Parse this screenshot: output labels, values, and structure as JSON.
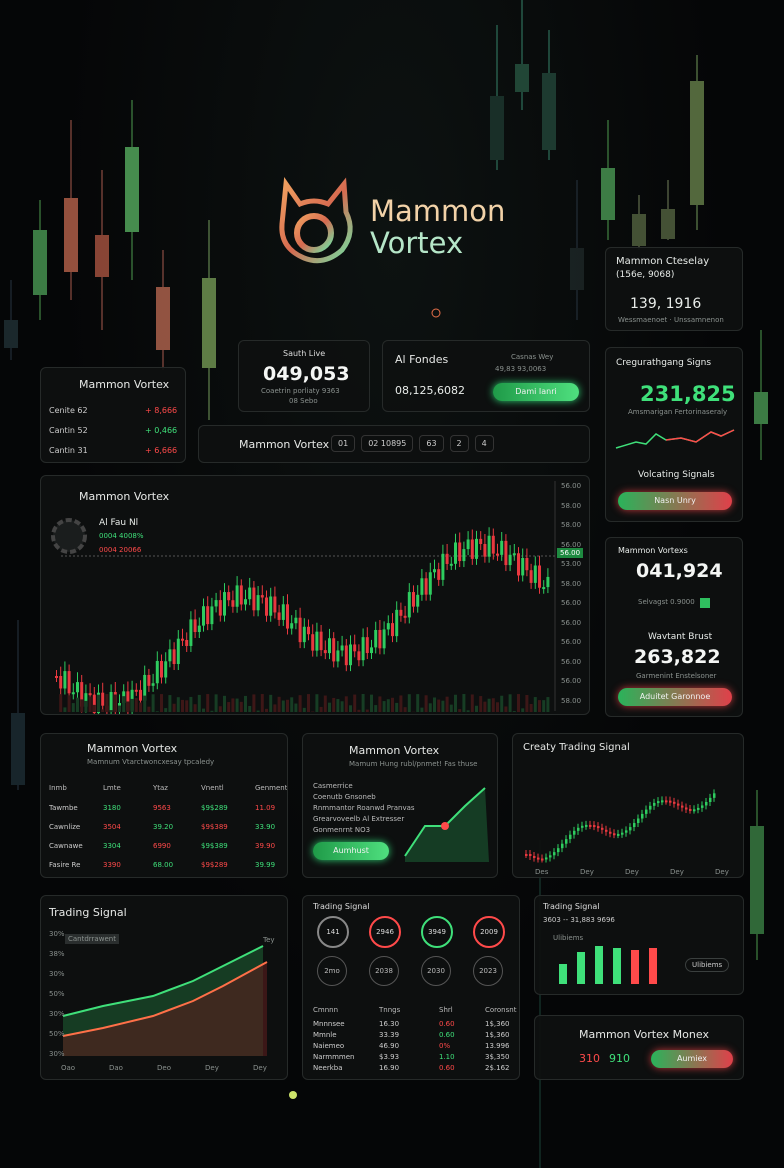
{
  "header": {
    "brand_line1": "Mammon",
    "brand_line2": "Vortex"
  },
  "live_panel": {
    "title": "Sauth Live",
    "value": "049,053",
    "sub1": "Coaetrin porliaty 9363",
    "sub2": "08 Sebo"
  },
  "fonds_panel": {
    "title": "Al Fondes",
    "side_title": "Casnas Wey",
    "side_sub": "49,83 93,0063",
    "value": "08,125,6082",
    "button": "Dami Ianri"
  },
  "vortex_small": {
    "title": "Mammon Vortex",
    "rows": [
      [
        "Cenite 62",
        "+ 8,666"
      ],
      [
        "Cantin 52",
        "+ 0,466"
      ],
      [
        "Cantin 31",
        "+ 6,666"
      ]
    ]
  },
  "toolbar": {
    "title": "Mammon Vortex",
    "tabs": [
      "01",
      "02 10895",
      "63",
      "2",
      "4"
    ]
  },
  "main_chart": {
    "title": "Mammon Vortex",
    "sub_title": "Al Fau Nl",
    "legend": [
      "0004 4008%",
      "0004 20066"
    ],
    "price_tag": "56.00",
    "axis_labels": [
      "56.00",
      "58.00",
      "58.00",
      "56.00",
      "53.00",
      "58.00",
      "56.00",
      "56.00",
      "56.00",
      "56.00",
      "56.00",
      "58.00"
    ]
  },
  "crossday": {
    "title": "Mammon Cteselay",
    "sub": "(156e, 9068)",
    "value": "139, 1916",
    "foot": "Wessmaenoet · Unssamnenon"
  },
  "signals": {
    "title": "Cregurathgang Signs",
    "value": "231,825",
    "sub": "Amsmarigan Fertorinaseraly",
    "label": "Volcating Signals",
    "button": "Nasn Unry"
  },
  "vortex_values": {
    "title": "Mammon Vortexs",
    "value1": "041,924",
    "sub1": "Selvagst 0.9000",
    "label2": "Wavtant Brust",
    "value2": "263,822",
    "sub2": "Garmenint Enstelsoner",
    "button": "Aduitet Garonnoe"
  },
  "table_panel": {
    "title": "Mammon Vortex",
    "subtitle": "Mamnum Vtarctwoncxesay tpcaledy",
    "headers": [
      "Inmb",
      "Lmte",
      "Ytaz",
      "Vnentl",
      "Genment"
    ],
    "rows": [
      [
        "Tawmbe",
        "3180",
        "9563",
        "$9$289",
        "11.09"
      ],
      [
        "Cawnlize",
        "3504",
        "39.20",
        "$9$389",
        "33.90"
      ],
      [
        "Cawnawe",
        "3304",
        "6990",
        "$9$389",
        "39.90"
      ],
      [
        "Fasire Re",
        "3390",
        "68.00",
        "$9$289",
        "39.99"
      ]
    ]
  },
  "mid_panel": {
    "title": "Mammon Vortex",
    "subtitle": "Mamum Hung rubl/pnmet! Fas thuse",
    "lines": [
      "Casmerrice",
      "Coenutb Gnsoneb",
      "Rnmmantor Roanwd Pranvas",
      "Grearvoveelb Al Extresser",
      "Gonmenrnt NO3"
    ],
    "button": "Aumhust"
  },
  "creaty_panel": {
    "title": "Creaty Trading Signal",
    "x_labels": [
      "Des",
      "Dey",
      "Dey",
      "Dey",
      "Dey"
    ]
  },
  "trading_chart": {
    "title": "Trading Signal",
    "badge": "Cantdrrawent",
    "y_labels": [
      "30%",
      "38%",
      "30%",
      "50%",
      "30%",
      "50%",
      "30%"
    ],
    "x_labels": [
      "Oao",
      "Dao",
      "Deo",
      "Dey",
      "Dey"
    ],
    "end_tag": "Tey"
  },
  "circles_panel": {
    "title": "Trading Signal",
    "circles": [
      "141",
      "2946",
      "3949",
      "2009"
    ],
    "small_circles": [
      "2mo",
      "2038",
      "2030",
      "2023"
    ],
    "headers": [
      "Cmnnn",
      "Tnngs",
      "Shrl",
      "Coronsnt"
    ],
    "rows": [
      [
        "Mnnnsee",
        "16.30",
        "0.60",
        "1$,360"
      ],
      [
        "Mmnle",
        "33.39",
        "0.60",
        "1$,360"
      ],
      [
        "Naiemeo",
        "46.90",
        "0%",
        "13.996"
      ],
      [
        "Narmmmen",
        "$3.93",
        "1.10",
        "3$,350"
      ],
      [
        "Neerkba",
        "16.90",
        "0.60",
        "2$.162"
      ]
    ]
  },
  "bar_panel": {
    "title": "Trading Signal",
    "sub": "3603 -- 31,883 9696",
    "legend_label": "Ulibiems",
    "pill": "Ulibiems"
  },
  "footer_panel": {
    "title": "Mammon Vortex Monex",
    "v1": "310",
    "v2": "910",
    "button": "Aumiex"
  }
}
